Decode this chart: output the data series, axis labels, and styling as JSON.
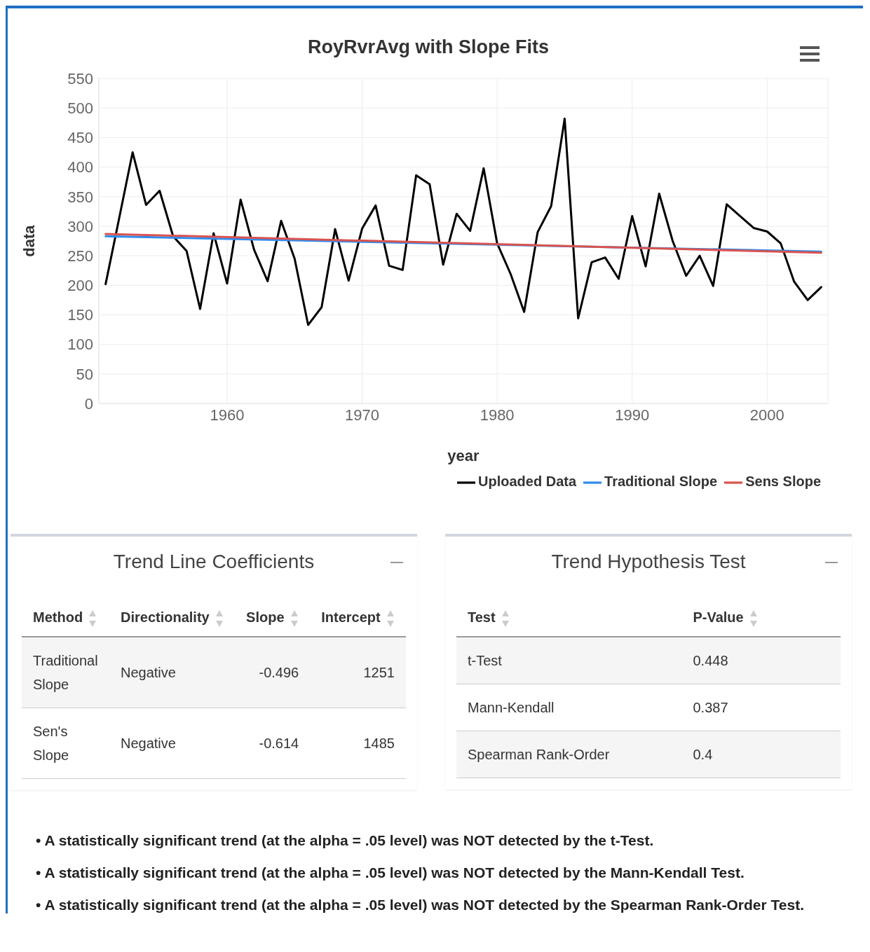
{
  "chart_data": [
    {
      "type": "line",
      "title": "RoyRvrAvg with Slope Fits",
      "xlabel": "year",
      "ylabel": "data",
      "xlim": [
        1950.5,
        2004.5
      ],
      "xticks": [
        1960,
        1970,
        1980,
        1990,
        2000
      ],
      "ylim": [
        0,
        550
      ],
      "yticks": [
        0,
        50,
        100,
        150,
        200,
        250,
        300,
        350,
        400,
        450,
        500,
        550
      ],
      "grid": true,
      "legend": "bottom right",
      "marker": "none",
      "line_style": "solid",
      "series": [
        {
          "name": "Uploaded Data",
          "color": "#000000",
          "x": [
            1951,
            1952,
            1953,
            1954,
            1955,
            1956,
            1957,
            1958,
            1959,
            1960,
            1961,
            1962,
            1963,
            1964,
            1965,
            1966,
            1967,
            1968,
            1969,
            1970,
            1971,
            1972,
            1973,
            1974,
            1975,
            1976,
            1977,
            1978,
            1979,
            1980,
            1981,
            1982,
            1983,
            1984,
            1985,
            1986,
            1987,
            1988,
            1989,
            1990,
            1991,
            1992,
            1993,
            1994,
            1995,
            1996,
            1997,
            1998,
            1999,
            2000,
            2001,
            2002,
            2003,
            2004
          ],
          "values": [
            202,
            313,
            425,
            336,
            360,
            283,
            258,
            160,
            288,
            203,
            345,
            260,
            207,
            309,
            245,
            133,
            163,
            295,
            208,
            296,
            335,
            233,
            226,
            386,
            371,
            235,
            321,
            292,
            398,
            271,
            219,
            155,
            290,
            334,
            482,
            144,
            239,
            247,
            211,
            317,
            232,
            355,
            275,
            216,
            250,
            199,
            337,
            317,
            297,
            291,
            271,
            206,
            175,
            197
          ]
        },
        {
          "name": "Traditional Slope",
          "color": "#2f8cf0",
          "x": [
            1951,
            2004
          ],
          "values": [
            283,
            257
          ]
        },
        {
          "name": "Sens Slope",
          "color": "#d9534f",
          "x": [
            1951,
            2004
          ],
          "values": [
            287,
            255
          ]
        }
      ],
      "annotations": [
        "• A statistically significant trend (at the alpha = .05 level) was NOT detected by the t-Test.",
        "• A statistically significant trend (at the alpha = .05 level) was NOT detected by the Mann-Kendall Test.",
        "• A statistically significant trend (at the alpha = .05 level) was NOT detected by the Spearman Rank-Order Test."
      ]
    },
    {
      "type": "other",
      "title": "Trend Line Coefficients",
      "annotations": [
        "Method",
        "Directionality",
        "Slope",
        "Intercept",
        "Traditional Slope",
        "Negative",
        "-0.496",
        "1251",
        "Sen's Slope",
        "Negative",
        "-0.614",
        "1485"
      ]
    },
    {
      "type": "other",
      "title": "Trend Hypothesis Test",
      "annotations": [
        "Test",
        "P-Value",
        "t-Test",
        "0.448",
        "Mann-Kendall",
        "0.387",
        "Spearman Rank-Order",
        "0.4"
      ]
    }
  ]
}
